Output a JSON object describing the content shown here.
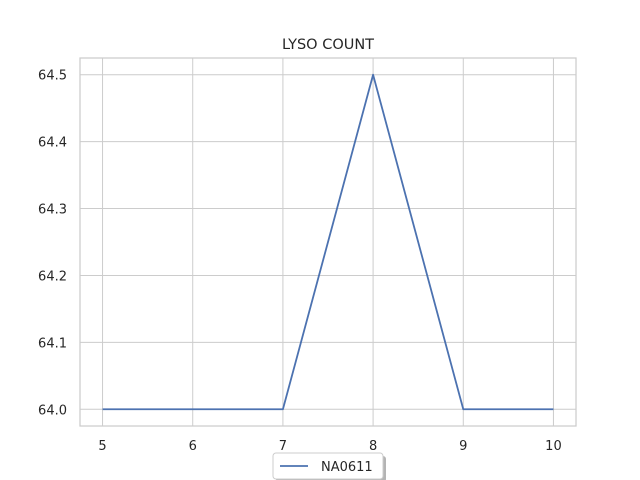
{
  "chart_data": {
    "type": "line",
    "title": "LYSO COUNT",
    "xlabel": "",
    "ylabel": "",
    "x": [
      5,
      6,
      7,
      8,
      9,
      10
    ],
    "series": [
      {
        "name": "NA0611",
        "values": [
          64.0,
          64.0,
          64.0,
          64.5,
          64.0,
          64.0
        ],
        "color": "#4c72b0"
      }
    ],
    "xlim": [
      4.75,
      10.25
    ],
    "ylim": [
      63.975,
      64.525
    ],
    "xticks": [
      5,
      6,
      7,
      8,
      9,
      10
    ],
    "yticks": [
      64.0,
      64.1,
      64.2,
      64.3,
      64.4,
      64.5
    ],
    "ytick_labels": [
      "64.0",
      "64.1",
      "64.2",
      "64.3",
      "64.4",
      "64.5"
    ],
    "grid": true,
    "legend_position": "bottom-center"
  }
}
